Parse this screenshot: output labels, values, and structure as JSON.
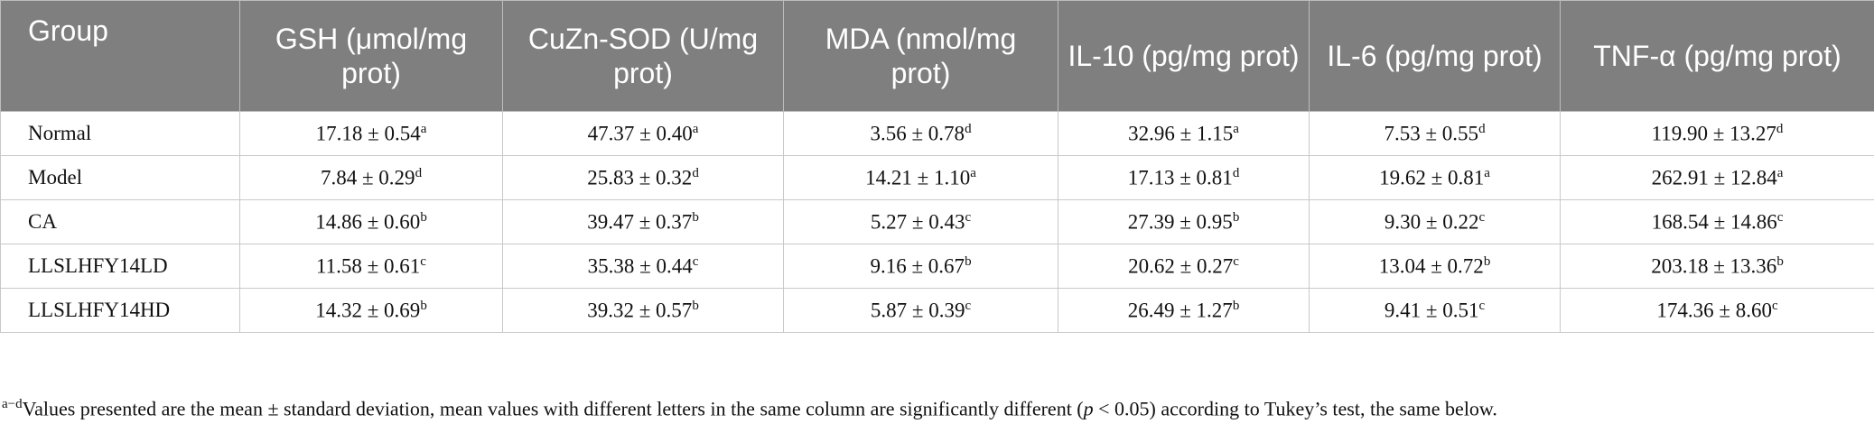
{
  "table": {
    "header": [
      "Group",
      "GSH (μmol/mg prot)",
      "CuZn-SOD (U/mg prot)",
      "MDA (nmol/mg prot)",
      "IL-10 (pg/mg prot)",
      "IL-6 (pg/mg prot)",
      "TNF-α (pg/mg prot)"
    ],
    "rows": [
      [
        "Normal",
        {
          "value": "17.18 ± 0.54",
          "sup": "a"
        },
        {
          "value": "47.37 ± 0.40",
          "sup": "a"
        },
        {
          "value": "3.56 ± 0.78",
          "sup": "d"
        },
        {
          "value": "32.96 ± 1.15",
          "sup": "a"
        },
        {
          "value": "7.53 ± 0.55",
          "sup": "d"
        },
        {
          "value": "119.90 ± 13.27",
          "sup": "d"
        }
      ],
      [
        "Model",
        {
          "value": "7.84 ± 0.29",
          "sup": "d"
        },
        {
          "value": "25.83 ± 0.32",
          "sup": "d"
        },
        {
          "value": "14.21 ± 1.10",
          "sup": "a"
        },
        {
          "value": "17.13 ± 0.81",
          "sup": "d"
        },
        {
          "value": "19.62 ± 0.81",
          "sup": "a"
        },
        {
          "value": "262.91 ± 12.84",
          "sup": "a"
        }
      ],
      [
        "CA",
        {
          "value": "14.86 ± 0.60",
          "sup": "b"
        },
        {
          "value": "39.47 ± 0.37",
          "sup": "b"
        },
        {
          "value": "5.27 ± 0.43",
          "sup": "c"
        },
        {
          "value": "27.39 ± 0.95",
          "sup": "b"
        },
        {
          "value": "9.30 ± 0.22",
          "sup": "c"
        },
        {
          "value": "168.54 ± 14.86",
          "sup": "c"
        }
      ],
      [
        "LLSLHFY14LD",
        {
          "value": "11.58 ± 0.61",
          "sup": "c"
        },
        {
          "value": "35.38 ± 0.44",
          "sup": "c"
        },
        {
          "value": "9.16 ± 0.67",
          "sup": "b"
        },
        {
          "value": "20.62 ± 0.27",
          "sup": "c"
        },
        {
          "value": "13.04 ± 0.72",
          "sup": "b"
        },
        {
          "value": "203.18 ± 13.36",
          "sup": "b"
        }
      ],
      [
        "LLSLHFY14HD",
        {
          "value": "14.32 ± 0.69",
          "sup": "b"
        },
        {
          "value": "39.32 ± 0.57",
          "sup": "b"
        },
        {
          "value": "5.87 ± 0.39",
          "sup": "c"
        },
        {
          "value": "26.49 ± 1.27",
          "sup": "b"
        },
        {
          "value": "9.41 ± 0.51",
          "sup": "c"
        },
        {
          "value": "174.36 ± 8.60",
          "sup": "c"
        }
      ]
    ]
  },
  "footnote": {
    "sup": "a−d",
    "text": "Values presented are the mean ± standard deviation, mean values with different letters in the same column are significantly different (",
    "italic": "p",
    "text_end": " < 0.05) according to Tukey’s test, the same below."
  }
}
